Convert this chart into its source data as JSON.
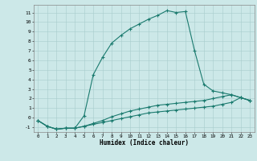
{
  "xlabel": "Humidex (Indice chaleur)",
  "bg_color": "#cce8e8",
  "line_color": "#1a7a6e",
  "xlim": [
    -0.5,
    23.5
  ],
  "ylim": [
    -1.5,
    11.8
  ],
  "xticks": [
    0,
    1,
    2,
    3,
    4,
    5,
    6,
    7,
    8,
    9,
    10,
    11,
    12,
    13,
    14,
    15,
    16,
    17,
    18,
    19,
    20,
    21,
    22,
    23
  ],
  "yticks": [
    -1,
    0,
    1,
    2,
    3,
    4,
    5,
    6,
    7,
    8,
    9,
    10,
    11
  ],
  "s1_x": [
    0,
    1,
    2,
    3,
    4,
    5,
    6,
    7,
    8,
    9,
    10,
    11,
    12,
    13,
    14,
    15,
    16,
    17,
    18,
    19,
    20,
    21,
    22,
    23
  ],
  "s1_y": [
    -0.3,
    -0.9,
    -1.2,
    -1.1,
    -1.1,
    0.2,
    4.5,
    6.3,
    7.8,
    8.6,
    9.3,
    9.8,
    10.3,
    10.7,
    11.2,
    11.0,
    11.1,
    7.0,
    3.5,
    2.8,
    2.6,
    2.4,
    2.1,
    1.8
  ],
  "s2_x": [
    0,
    1,
    2,
    3,
    4,
    5,
    6,
    7,
    8,
    9,
    10,
    11,
    12,
    13,
    14,
    15,
    16,
    17,
    18,
    19,
    20,
    21,
    22,
    23
  ],
  "s2_y": [
    -0.3,
    -0.9,
    -1.2,
    -1.1,
    -1.1,
    -0.9,
    -0.6,
    -0.3,
    0.1,
    0.4,
    0.7,
    0.9,
    1.1,
    1.3,
    1.4,
    1.5,
    1.6,
    1.7,
    1.8,
    2.0,
    2.2,
    2.4,
    2.1,
    1.8
  ],
  "s3_x": [
    0,
    1,
    2,
    3,
    4,
    5,
    6,
    7,
    8,
    9,
    10,
    11,
    12,
    13,
    14,
    15,
    16,
    17,
    18,
    19,
    20,
    21,
    22,
    23
  ],
  "s3_y": [
    -0.3,
    -0.9,
    -1.2,
    -1.1,
    -1.1,
    -0.9,
    -0.7,
    -0.5,
    -0.3,
    -0.1,
    0.1,
    0.3,
    0.5,
    0.6,
    0.7,
    0.8,
    0.9,
    1.0,
    1.1,
    1.2,
    1.4,
    1.6,
    2.1,
    1.8
  ]
}
